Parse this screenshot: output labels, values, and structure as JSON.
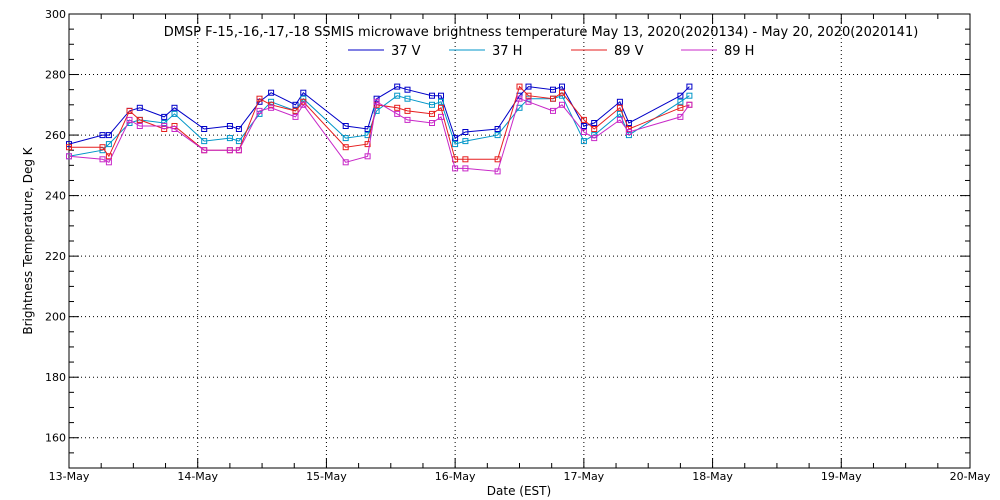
{
  "chart_data": {
    "type": "line",
    "title": "DMSP F-15,-16,-17,-18 SSMIS microwave brightness temperature May 13, 2020(2020134) - May 20, 2020(2020141)",
    "xlabel": "Date (EST)",
    "ylabel": "Brightness Temperature, Deg K",
    "xlim": [
      0,
      7
    ],
    "ylim": [
      150,
      300
    ],
    "grid": true,
    "legend_position": "top",
    "x_ticks": [
      {
        "value": 0,
        "label": "13-May"
      },
      {
        "value": 1,
        "label": "14-May"
      },
      {
        "value": 2,
        "label": "15-May"
      },
      {
        "value": 3,
        "label": "16-May"
      },
      {
        "value": 4,
        "label": "17-May"
      },
      {
        "value": 5,
        "label": "18-May"
      },
      {
        "value": 6,
        "label": "19-May"
      },
      {
        "value": 7,
        "label": "20-May"
      }
    ],
    "y_ticks": [
      {
        "value": 160,
        "label": "160"
      },
      {
        "value": 180,
        "label": "180"
      },
      {
        "value": 200,
        "label": "200"
      },
      {
        "value": 220,
        "label": "220"
      },
      {
        "value": 240,
        "label": "240"
      },
      {
        "value": 260,
        "label": "260"
      },
      {
        "value": 280,
        "label": "280"
      },
      {
        "value": 300,
        "label": "300"
      }
    ],
    "x": [
      0.0,
      0.26,
      0.31,
      0.47,
      0.55,
      0.74,
      0.82,
      1.05,
      1.25,
      1.32,
      1.48,
      1.57,
      1.76,
      1.82,
      2.15,
      2.32,
      2.39,
      2.55,
      2.63,
      2.82,
      2.89,
      3.0,
      3.08,
      3.33,
      3.5,
      3.57,
      3.76,
      3.83,
      4.0,
      4.08,
      4.28,
      4.35,
      4.75,
      4.82
    ],
    "series": [
      {
        "name": "37 V",
        "color": "#0000c8",
        "values": [
          257,
          260,
          260,
          268,
          269,
          266,
          269,
          262,
          263,
          262,
          271,
          274,
          270,
          274,
          263,
          262,
          272,
          276,
          275,
          273,
          273,
          259,
          261,
          262,
          273,
          276,
          275,
          276,
          263,
          264,
          271,
          264,
          273,
          276
        ]
      },
      {
        "name": "37 H",
        "color": "#0096c8",
        "values": [
          253,
          255,
          257,
          264,
          265,
          264,
          267,
          258,
          259,
          258,
          267,
          271,
          268,
          272,
          259,
          260,
          268,
          273,
          272,
          270,
          271,
          257,
          258,
          260,
          269,
          272,
          272,
          273,
          258,
          260,
          267,
          260,
          271,
          273
        ]
      },
      {
        "name": "89 V",
        "color": "#e61e1e",
        "values": [
          256,
          256,
          253,
          268,
          265,
          262,
          263,
          255,
          255,
          255,
          272,
          270,
          268,
          271,
          256,
          257,
          270,
          269,
          268,
          267,
          269,
          252,
          252,
          252,
          276,
          273,
          272,
          274,
          265,
          262,
          269,
          262,
          269,
          270
        ]
      },
      {
        "name": "89 H",
        "color": "#c828c8",
        "values": [
          253,
          252,
          251,
          265,
          263,
          263,
          262,
          255,
          255,
          255,
          268,
          269,
          266,
          270,
          251,
          253,
          271,
          267,
          265,
          264,
          266,
          249,
          249,
          248,
          272,
          271,
          268,
          270,
          261,
          259,
          265,
          261,
          266,
          270
        ]
      }
    ]
  }
}
